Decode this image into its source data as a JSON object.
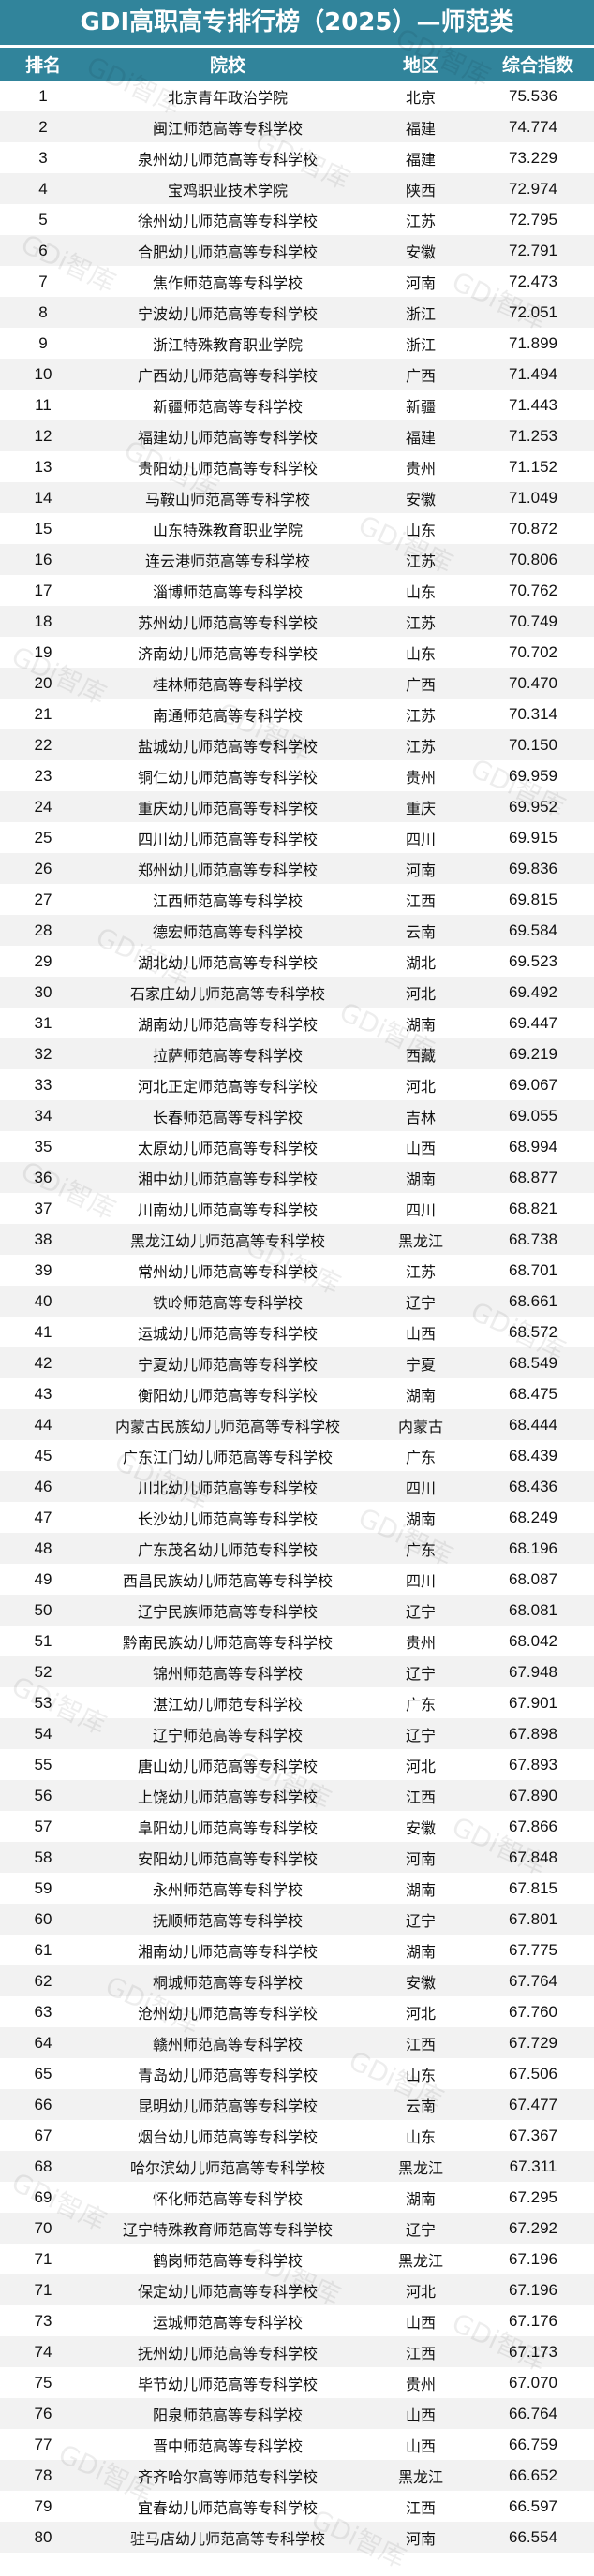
{
  "title": "GDI高职高专排行榜（2025）—师范类",
  "watermark": "GDi智库",
  "colors": {
    "header_bg": "#31849b",
    "header_text": "#ffffff",
    "row_alt": "#f2f2f2"
  },
  "columns": [
    "排名",
    "院校",
    "地区",
    "综合指数"
  ],
  "rows": [
    {
      "rank": "1",
      "name": "北京青年政治学院",
      "region": "北京",
      "score": "75.536"
    },
    {
      "rank": "2",
      "name": "闽江师范高等专科学校",
      "region": "福建",
      "score": "74.774"
    },
    {
      "rank": "3",
      "name": "泉州幼儿师范高等专科学校",
      "region": "福建",
      "score": "73.229"
    },
    {
      "rank": "4",
      "name": "宝鸡职业技术学院",
      "region": "陕西",
      "score": "72.974"
    },
    {
      "rank": "5",
      "name": "徐州幼儿师范高等专科学校",
      "region": "江苏",
      "score": "72.795"
    },
    {
      "rank": "6",
      "name": "合肥幼儿师范高等专科学校",
      "region": "安徽",
      "score": "72.791"
    },
    {
      "rank": "7",
      "name": "焦作师范高等专科学校",
      "region": "河南",
      "score": "72.473"
    },
    {
      "rank": "8",
      "name": "宁波幼儿师范高等专科学校",
      "region": "浙江",
      "score": "72.051"
    },
    {
      "rank": "9",
      "name": "浙江特殊教育职业学院",
      "region": "浙江",
      "score": "71.899"
    },
    {
      "rank": "10",
      "name": "广西幼儿师范高等专科学校",
      "region": "广西",
      "score": "71.494"
    },
    {
      "rank": "11",
      "name": "新疆师范高等专科学校",
      "region": "新疆",
      "score": "71.443"
    },
    {
      "rank": "12",
      "name": "福建幼儿师范高等专科学校",
      "region": "福建",
      "score": "71.253"
    },
    {
      "rank": "13",
      "name": "贵阳幼儿师范高等专科学校",
      "region": "贵州",
      "score": "71.152"
    },
    {
      "rank": "14",
      "name": "马鞍山师范高等专科学校",
      "region": "安徽",
      "score": "71.049"
    },
    {
      "rank": "15",
      "name": "山东特殊教育职业学院",
      "region": "山东",
      "score": "70.872"
    },
    {
      "rank": "16",
      "name": "连云港师范高等专科学校",
      "region": "江苏",
      "score": "70.806"
    },
    {
      "rank": "17",
      "name": "淄博师范高等专科学校",
      "region": "山东",
      "score": "70.762"
    },
    {
      "rank": "18",
      "name": "苏州幼儿师范高等专科学校",
      "region": "江苏",
      "score": "70.749"
    },
    {
      "rank": "19",
      "name": "济南幼儿师范高等专科学校",
      "region": "山东",
      "score": "70.702"
    },
    {
      "rank": "20",
      "name": "桂林师范高等专科学校",
      "region": "广西",
      "score": "70.470"
    },
    {
      "rank": "21",
      "name": "南通师范高等专科学校",
      "region": "江苏",
      "score": "70.314"
    },
    {
      "rank": "22",
      "name": "盐城幼儿师范高等专科学校",
      "region": "江苏",
      "score": "70.150"
    },
    {
      "rank": "23",
      "name": "铜仁幼儿师范高等专科学校",
      "region": "贵州",
      "score": "69.959"
    },
    {
      "rank": "24",
      "name": "重庆幼儿师范高等专科学校",
      "region": "重庆",
      "score": "69.952"
    },
    {
      "rank": "25",
      "name": "四川幼儿师范高等专科学校",
      "region": "四川",
      "score": "69.915"
    },
    {
      "rank": "26",
      "name": "郑州幼儿师范高等专科学校",
      "region": "河南",
      "score": "69.836"
    },
    {
      "rank": "27",
      "name": "江西师范高等专科学校",
      "region": "江西",
      "score": "69.815"
    },
    {
      "rank": "28",
      "name": "德宏师范高等专科学校",
      "region": "云南",
      "score": "69.584"
    },
    {
      "rank": "29",
      "name": "湖北幼儿师范高等专科学校",
      "region": "湖北",
      "score": "69.523"
    },
    {
      "rank": "30",
      "name": "石家庄幼儿师范高等专科学校",
      "region": "河北",
      "score": "69.492"
    },
    {
      "rank": "31",
      "name": "湖南幼儿师范高等专科学校",
      "region": "湖南",
      "score": "69.447"
    },
    {
      "rank": "32",
      "name": "拉萨师范高等专科学校",
      "region": "西藏",
      "score": "69.219"
    },
    {
      "rank": "33",
      "name": "河北正定师范高等专科学校",
      "region": "河北",
      "score": "69.067"
    },
    {
      "rank": "34",
      "name": "长春师范高等专科学校",
      "region": "吉林",
      "score": "69.055"
    },
    {
      "rank": "35",
      "name": "太原幼儿师范高等专科学校",
      "region": "山西",
      "score": "68.994"
    },
    {
      "rank": "36",
      "name": "湘中幼儿师范高等专科学校",
      "region": "湖南",
      "score": "68.877"
    },
    {
      "rank": "37",
      "name": "川南幼儿师范高等专科学校",
      "region": "四川",
      "score": "68.821"
    },
    {
      "rank": "38",
      "name": "黑龙江幼儿师范高等专科学校",
      "region": "黑龙江",
      "score": "68.738"
    },
    {
      "rank": "39",
      "name": "常州幼儿师范高等专科学校",
      "region": "江苏",
      "score": "68.701"
    },
    {
      "rank": "40",
      "name": "铁岭师范高等专科学校",
      "region": "辽宁",
      "score": "68.661"
    },
    {
      "rank": "41",
      "name": "运城幼儿师范高等专科学校",
      "region": "山西",
      "score": "68.572"
    },
    {
      "rank": "42",
      "name": "宁夏幼儿师范高等专科学校",
      "region": "宁夏",
      "score": "68.549"
    },
    {
      "rank": "43",
      "name": "衡阳幼儿师范高等专科学校",
      "region": "湖南",
      "score": "68.475"
    },
    {
      "rank": "44",
      "name": "内蒙古民族幼儿师范高等专科学校",
      "region": "内蒙古",
      "score": "68.444"
    },
    {
      "rank": "45",
      "name": "广东江门幼儿师范高等专科学校",
      "region": "广东",
      "score": "68.439"
    },
    {
      "rank": "46",
      "name": "川北幼儿师范高等专科学校",
      "region": "四川",
      "score": "68.436"
    },
    {
      "rank": "47",
      "name": "长沙幼儿师范高等专科学校",
      "region": "湖南",
      "score": "68.249"
    },
    {
      "rank": "48",
      "name": "广东茂名幼儿师范专科学校",
      "region": "广东",
      "score": "68.196"
    },
    {
      "rank": "49",
      "name": "西昌民族幼儿师范高等专科学校",
      "region": "四川",
      "score": "68.087"
    },
    {
      "rank": "50",
      "name": "辽宁民族师范高等专科学校",
      "region": "辽宁",
      "score": "68.081"
    },
    {
      "rank": "51",
      "name": "黔南民族幼儿师范高等专科学校",
      "region": "贵州",
      "score": "68.042"
    },
    {
      "rank": "52",
      "name": "锦州师范高等专科学校",
      "region": "辽宁",
      "score": "67.948"
    },
    {
      "rank": "53",
      "name": "湛江幼儿师范专科学校",
      "region": "广东",
      "score": "67.901"
    },
    {
      "rank": "54",
      "name": "辽宁师范高等专科学校",
      "region": "辽宁",
      "score": "67.898"
    },
    {
      "rank": "55",
      "name": "唐山幼儿师范高等专科学校",
      "region": "河北",
      "score": "67.893"
    },
    {
      "rank": "56",
      "name": "上饶幼儿师范高等专科学校",
      "region": "江西",
      "score": "67.890"
    },
    {
      "rank": "57",
      "name": "阜阳幼儿师范高等专科学校",
      "region": "安徽",
      "score": "67.866"
    },
    {
      "rank": "58",
      "name": "安阳幼儿师范高等专科学校",
      "region": "河南",
      "score": "67.848"
    },
    {
      "rank": "59",
      "name": "永州师范高等专科学校",
      "region": "湖南",
      "score": "67.815"
    },
    {
      "rank": "60",
      "name": "抚顺师范高等专科学校",
      "region": "辽宁",
      "score": "67.801"
    },
    {
      "rank": "61",
      "name": "湘南幼儿师范高等专科学校",
      "region": "湖南",
      "score": "67.775"
    },
    {
      "rank": "62",
      "name": "桐城师范高等专科学校",
      "region": "安徽",
      "score": "67.764"
    },
    {
      "rank": "63",
      "name": "沧州幼儿师范高等专科学校",
      "region": "河北",
      "score": "67.760"
    },
    {
      "rank": "64",
      "name": "赣州师范高等专科学校",
      "region": "江西",
      "score": "67.729"
    },
    {
      "rank": "65",
      "name": "青岛幼儿师范高等专科学校",
      "region": "山东",
      "score": "67.506"
    },
    {
      "rank": "66",
      "name": "昆明幼儿师范高等专科学校",
      "region": "云南",
      "score": "67.477"
    },
    {
      "rank": "67",
      "name": "烟台幼儿师范高等专科学校",
      "region": "山东",
      "score": "67.367"
    },
    {
      "rank": "68",
      "name": "哈尔滨幼儿师范高等专科学校",
      "region": "黑龙江",
      "score": "67.311"
    },
    {
      "rank": "69",
      "name": "怀化师范高等专科学校",
      "region": "湖南",
      "score": "67.295"
    },
    {
      "rank": "70",
      "name": "辽宁特殊教育师范高等专科学校",
      "region": "辽宁",
      "score": "67.292"
    },
    {
      "rank": "71",
      "name": "鹤岗师范高等专科学校",
      "region": "黑龙江",
      "score": "67.196"
    },
    {
      "rank": "71",
      "name": "保定幼儿师范高等专科学校",
      "region": "河北",
      "score": "67.196"
    },
    {
      "rank": "73",
      "name": "运城师范高等专科学校",
      "region": "山西",
      "score": "67.176"
    },
    {
      "rank": "74",
      "name": "抚州幼儿师范高等专科学校",
      "region": "江西",
      "score": "67.173"
    },
    {
      "rank": "75",
      "name": "毕节幼儿师范高等专科学校",
      "region": "贵州",
      "score": "67.070"
    },
    {
      "rank": "76",
      "name": "阳泉师范高等专科学校",
      "region": "山西",
      "score": "66.764"
    },
    {
      "rank": "77",
      "name": "晋中师范高等专科学校",
      "region": "山西",
      "score": "66.759"
    },
    {
      "rank": "78",
      "name": "齐齐哈尔高等师范专科学校",
      "region": "黑龙江",
      "score": "66.652"
    },
    {
      "rank": "79",
      "name": "宜春幼儿师范高等专科学校",
      "region": "江西",
      "score": "66.597"
    },
    {
      "rank": "80",
      "name": "驻马店幼儿师范高等专科学校",
      "region": "河南",
      "score": "66.554"
    }
  ]
}
